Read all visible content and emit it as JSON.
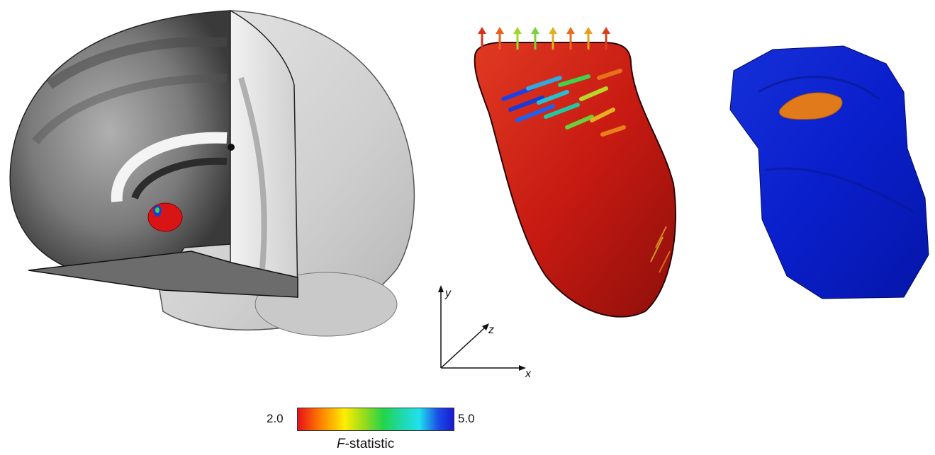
{
  "axes": {
    "x": "x",
    "y": "y",
    "z": "z"
  },
  "colorbar": {
    "min_label": "2.0",
    "max_label": "5.0",
    "title_italic": "F",
    "title_rest": "-statistic",
    "colors": [
      "#e8101a",
      "#ff7a00",
      "#ffee00",
      "#22d44a",
      "#20e0ee",
      "#1a1ad2"
    ]
  },
  "icons": {
    "brain": "brain-mri-render-icon",
    "nucleus": "nucleus-surface-render-icon",
    "shape": "blue-surface-render-icon"
  }
}
